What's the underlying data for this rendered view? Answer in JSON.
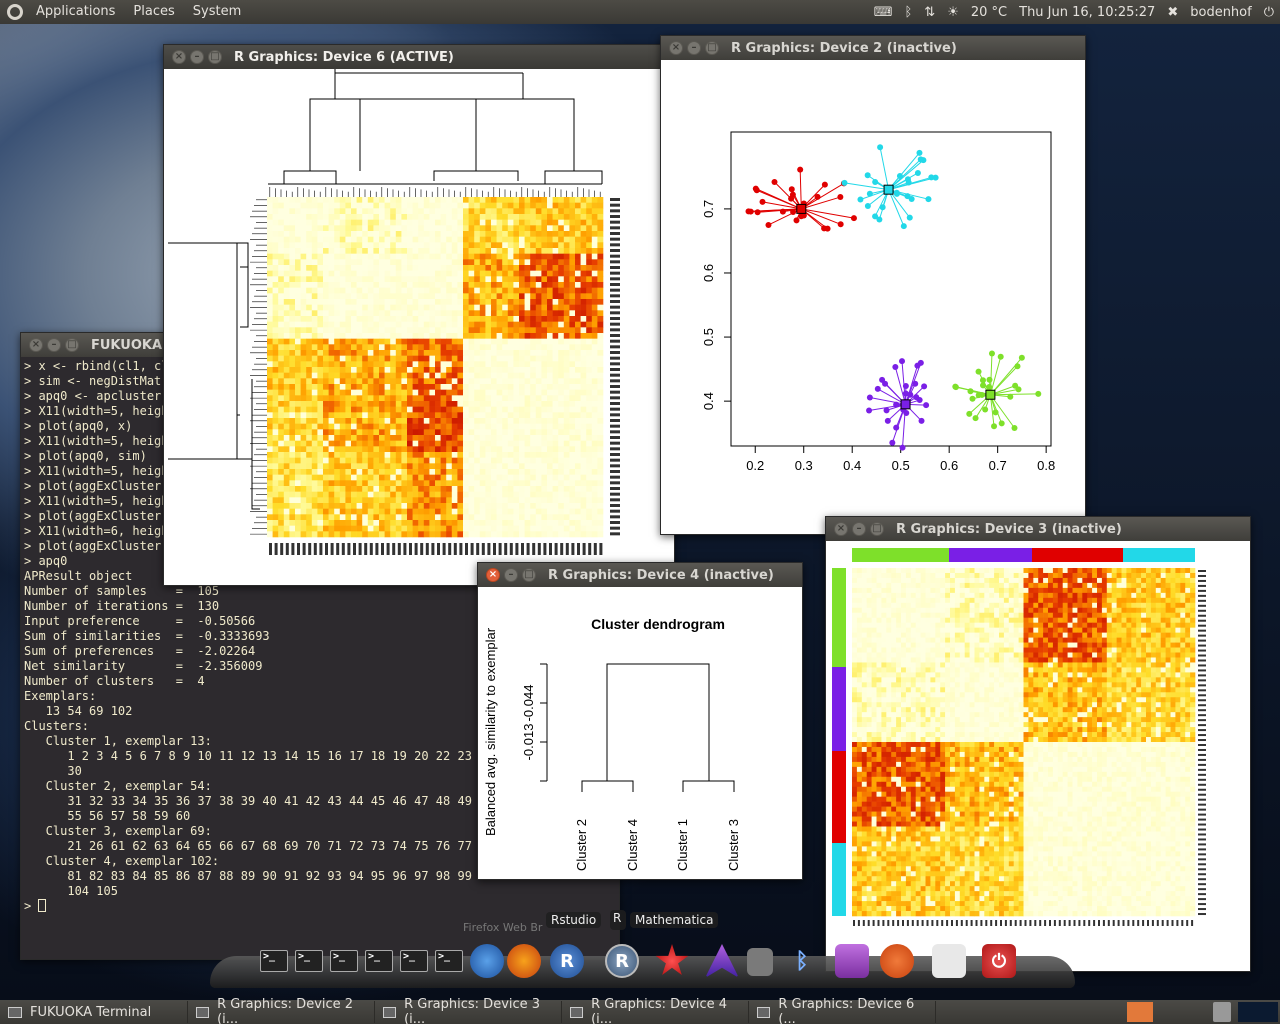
{
  "top_panel": {
    "menus": [
      "Applications",
      "Places",
      "System"
    ],
    "weather": "20 °C",
    "clock": "Thu Jun 16, 10:25:27",
    "user": "bodenhof"
  },
  "windows": {
    "dev6": {
      "title": "R Graphics: Device 6 (ACTIVE)"
    },
    "dev2": {
      "title": "R Graphics: Device 2 (inactive)"
    },
    "dev3": {
      "title": "R Graphics: Device 3 (inactive)"
    },
    "dev4": {
      "title": "R Graphics: Device 4 (inactive)"
    },
    "terminal": {
      "title": "FUKUOKA"
    }
  },
  "terminal_lines": [
    "> x <- rbind(cl1, cl",
    "> sim <- negDistMat(",
    "> apq0 <- apcluster(",
    "> X11(width=5, heigh",
    "> plot(apq0, x)",
    "> X11(width=5, heigh",
    "> plot(apq0, sim)",
    "> X11(width=5, heigh",
    "> plot(aggExCluster(",
    "> X11(width=5, heigh",
    "> plot(aggExCluster(",
    "> X11(width=6, heigh",
    "> plot(aggExCluster(",
    "> apq0",
    "",
    "APResult object",
    "",
    "Number of samples    =  105",
    "Number of iterations =  130",
    "Input preference     =  -0.50566",
    "Sum of similarities  =  -0.3333693",
    "Sum of preferences   =  -2.02264",
    "Net similarity       =  -2.356009",
    "Number of clusters   =  4",
    "",
    "Exemplars:",
    "   13 54 69 102",
    "Clusters:",
    "   Cluster 1, exemplar 13:",
    "      1 2 3 4 5 6 7 8 9 10 11 12 13 14 15 16 17 18 19 20 22 23 24",
    "      30",
    "   Cluster 2, exemplar 54:",
    "      31 32 33 34 35 36 37 38 39 40 41 42 43 44 45 46 47 48 49 50",
    "      55 56 57 58 59 60",
    "   Cluster 3, exemplar 69:",
    "      21 26 61 62 63 64 65 66 67 68 69 70 71 72 73 74 75 76 77 78 79 80",
    "   Cluster 4, exemplar 102:",
    "      81 82 83 84 85 86 87 88 89 90 91 92 93 94 95 96 97 98 99 100 101 102",
    "      104 105",
    "> "
  ],
  "scatter": {
    "x_ticks": [
      "0.2",
      "0.3",
      "0.4",
      "0.5",
      "0.6",
      "0.7",
      "0.8"
    ],
    "y_ticks": [
      "0.4",
      "0.5",
      "0.6",
      "0.7"
    ],
    "xlim": [
      0.15,
      0.81
    ],
    "ylim": [
      0.33,
      0.82
    ],
    "clusters": [
      {
        "color": "#e00000",
        "exemplar": [
          0.295,
          0.7
        ]
      },
      {
        "color": "#22d8e8",
        "exemplar": [
          0.475,
          0.73
        ]
      },
      {
        "color": "#7a1fe6",
        "exemplar": [
          0.51,
          0.395
        ]
      },
      {
        "color": "#7ee02a",
        "exemplar": [
          0.685,
          0.41
        ]
      }
    ]
  },
  "dendrogram": {
    "title": "Cluster dendrogram",
    "ylabel": "Balanced avg. similarity to exemplar",
    "y_ticks": [
      "-0.013",
      "-0.044"
    ],
    "leaves": [
      "Cluster 2",
      "Cluster 4",
      "Cluster 1",
      "Cluster 3"
    ]
  },
  "dock": {
    "labels": [
      "Rstudio",
      "Mathematica",
      "Firefox Web Br"
    ],
    "r_badge": "R"
  },
  "taskbar": [
    "FUKUOKA Terminal",
    "R Graphics: Device 2 (i...",
    "R Graphics: Device 3 (i...",
    "R Graphics: Device 4 (i...",
    "R Graphics: Device 6 (..."
  ]
}
